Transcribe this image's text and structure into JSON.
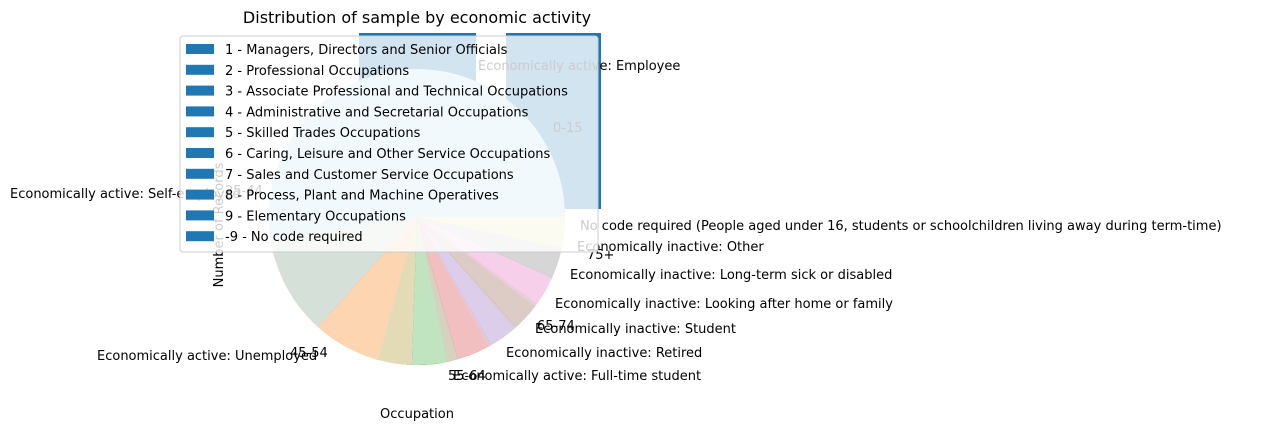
{
  "chart_data": [
    {
      "type": "bar",
      "ylabel": "Number of Records",
      "categories": [
        "0-15"
      ],
      "legend": {
        "placement": "upper-left",
        "entries": [
          "1 - Managers, Directors and Senior Officials",
          "2 - Professional Occupations",
          "3 - Associate Professional and Technical Occupations",
          "4 - Administrative and Secretarial Occupations",
          "5 - Skilled Trades Occupations",
          "6 - Caring, Leisure and Other Service Occupations",
          "7 - Sales and Customer Service Occupations",
          "8 - Process, Plant and Machine Operatives",
          "9 - Elementary Occupations",
          "-9 - No code required"
        ]
      },
      "color": "#1f77b4"
    },
    {
      "type": "pie",
      "xlabel": "Occupation",
      "labels": [
        "25-44",
        "45-54",
        "55-64",
        "65-74",
        "75+"
      ]
    },
    {
      "type": "pie",
      "title": "Distribution of sample by economic activity",
      "start_angle_deg": 0,
      "slices": [
        {
          "label": "Economically active: Employee",
          "value": 40.0,
          "color": "#1f77b4"
        },
        {
          "label": "Economically active: Self-employed",
          "value": 9.0,
          "color": "#1f77b4"
        },
        {
          "label": "Economically active: Unemployed",
          "value": 17.0,
          "color": "#ff7f0e"
        },
        {
          "label": "Economically active: Full-time student",
          "value": 7.0,
          "color": "#2ca02c"
        },
        {
          "label": "Economically inactive: Retired",
          "value": 4.5,
          "color": "#d62728"
        },
        {
          "label": "Economically inactive: Student",
          "value": 3.0,
          "color": "#9467bd"
        },
        {
          "label": "Economically inactive: Looking after home or family",
          "value": 3.2,
          "color": "#8c564b"
        },
        {
          "label": "Economically inactive: Long-term sick or disabled",
          "value": 3.2,
          "color": "#e377c2"
        },
        {
          "label": "Economically inactive: Other",
          "value": 3.2,
          "color": "#7f7f7f"
        },
        {
          "label": "No code required (People aged under 16, students or schoolchildren living away during term-time)",
          "value": 3.2,
          "color": "#bcbd22"
        }
      ]
    }
  ]
}
